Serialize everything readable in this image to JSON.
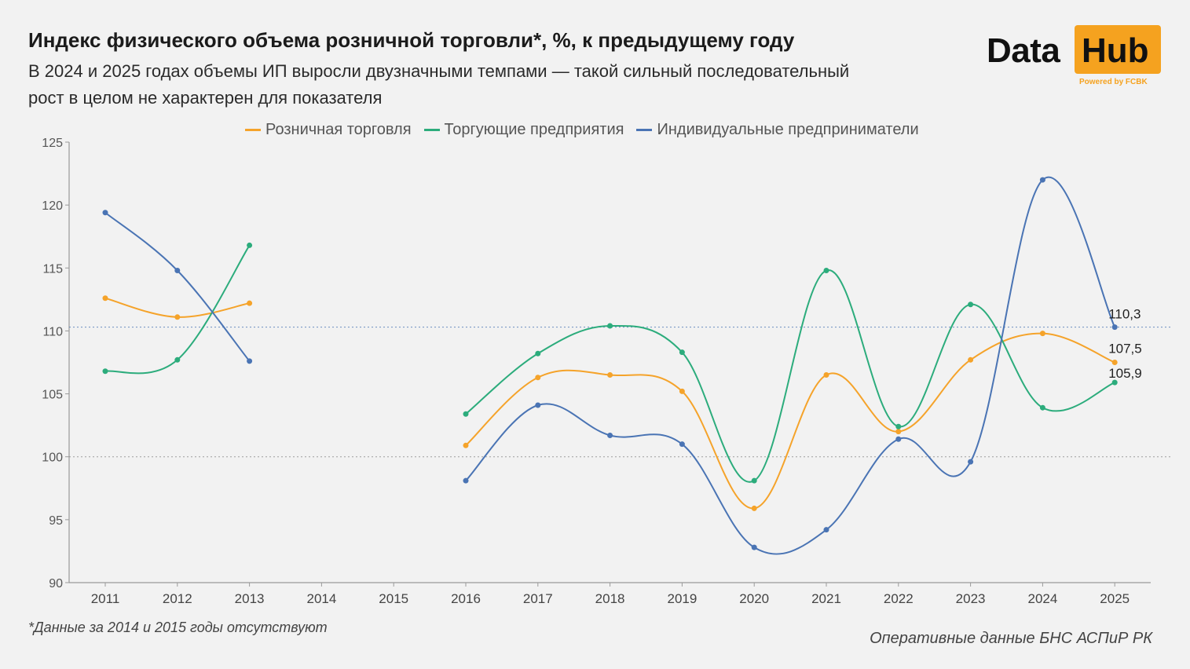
{
  "header": {
    "title": "Индекс физического объема розничной торговли*, %, к предыдущему году",
    "subtitle": "В 2024 и 2025 годах объемы ИП выросли двузначными темпами — такой сильный последовательный рост в целом не характерен для показателя"
  },
  "logo": {
    "word1": "Data",
    "word2": "Hub",
    "tagline": "Powered by FCBK",
    "accent_color": "#f5a21f"
  },
  "footer": {
    "footnote": "*Данные за 2014 и 2015 годы отсутствуют",
    "source": "Оперативные данные БНС АСПиР РК"
  },
  "chart_data": {
    "type": "line",
    "x": [
      "2011",
      "2012",
      "2013",
      "2014",
      "2015",
      "2016",
      "2017",
      "2018",
      "2019",
      "2020",
      "2021",
      "2022",
      "2023",
      "2024",
      "2025"
    ],
    "ylim": [
      90,
      125
    ],
    "yticks": [
      90,
      95,
      100,
      105,
      110,
      115,
      120,
      125
    ],
    "reference_lines": [
      100,
      110.3
    ],
    "legend_position": "top",
    "series": [
      {
        "name": "Розничная торговля",
        "color": "#f5a32a",
        "values": [
          112.6,
          111.1,
          112.2,
          null,
          null,
          100.9,
          106.3,
          106.5,
          105.2,
          95.9,
          106.5,
          102.0,
          107.7,
          109.8,
          107.5
        ],
        "end_label": "107,5"
      },
      {
        "name": "Торгующие предприятия",
        "color": "#2cac7c",
        "values": [
          106.8,
          107.7,
          116.8,
          null,
          null,
          103.4,
          108.2,
          110.4,
          108.3,
          98.1,
          114.8,
          102.4,
          112.1,
          103.9,
          105.9
        ],
        "end_label": "105,9"
      },
      {
        "name": "Индивидуальные предприниматели",
        "color": "#4a74b4",
        "values": [
          119.4,
          114.8,
          107.6,
          null,
          null,
          98.1,
          104.1,
          101.7,
          101.0,
          92.8,
          94.2,
          101.4,
          99.6,
          122.0,
          110.3
        ],
        "end_label": "110,3"
      }
    ]
  }
}
